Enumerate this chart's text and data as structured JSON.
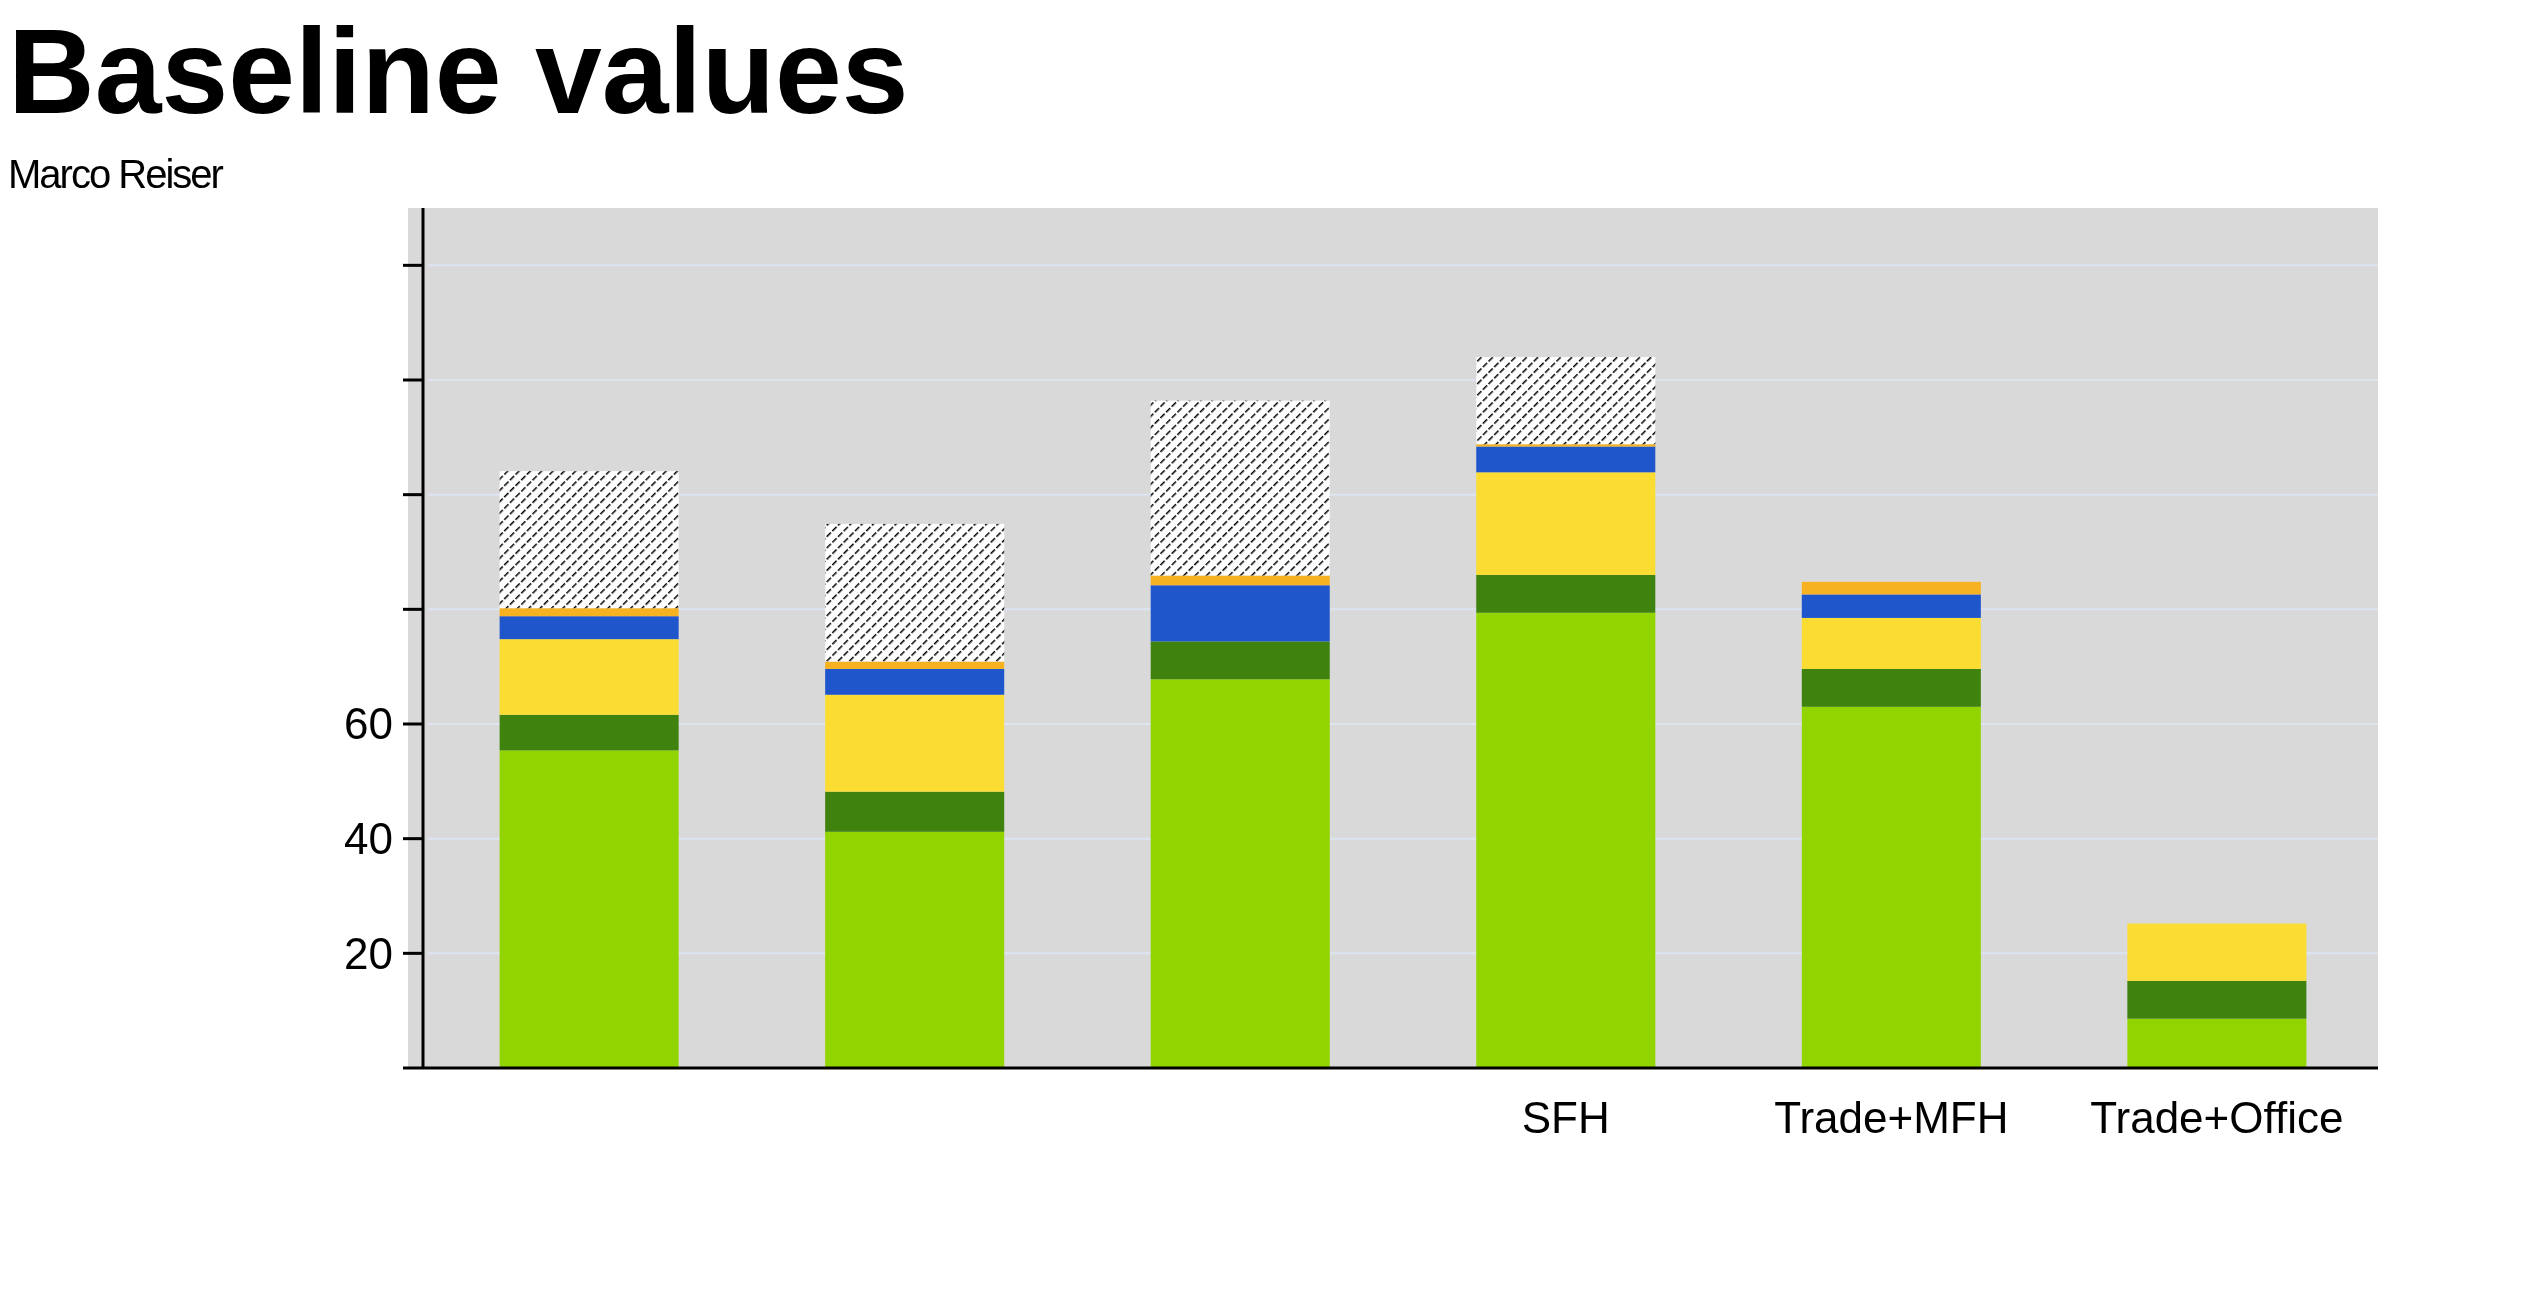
{
  "chart_data": {
    "type": "bar",
    "stacked": true,
    "title": "Baseline values",
    "subtitle": "Marco Reiser",
    "categories": [
      null,
      null,
      null,
      "SFH",
      "Trade+MFH",
      "Trade+Office"
    ],
    "series": [
      {
        "color": "#92d400",
        "values": [
          55.4,
          41.2,
          67.8,
          79.4,
          63.0,
          8.6
        ]
      },
      {
        "color": "#3f830e",
        "values": [
          6.2,
          7.0,
          6.6,
          6.6,
          6.6,
          6.6
        ]
      },
      {
        "color": "#fbdc33",
        "values": [
          13.2,
          16.9,
          0,
          17.9,
          8.9,
          10.0
        ]
      },
      {
        "color": "#2056cb",
        "values": [
          4.0,
          4.5,
          9.8,
          4.5,
          4.1,
          null
        ]
      },
      {
        "color": "#f6b221",
        "values": [
          1.4,
          1.3,
          1.7,
          0.4,
          2.2,
          null
        ]
      },
      {
        "color": "#000000",
        "values": [
          23.9,
          24.0,
          30.5,
          15.2,
          null,
          null
        ]
      }
    ],
    "ylim": [
      0,
      150
    ],
    "yticks": [
      {
        "value": 0,
        "label": null
      },
      20,
      40,
      60,
      {
        "value": 80,
        "label": null
      },
      {
        "value": 100,
        "label": null
      },
      {
        "value": 120,
        "label": null
      },
      {
        "value": 140,
        "label": null
      }
    ],
    "grid": "y"
  }
}
